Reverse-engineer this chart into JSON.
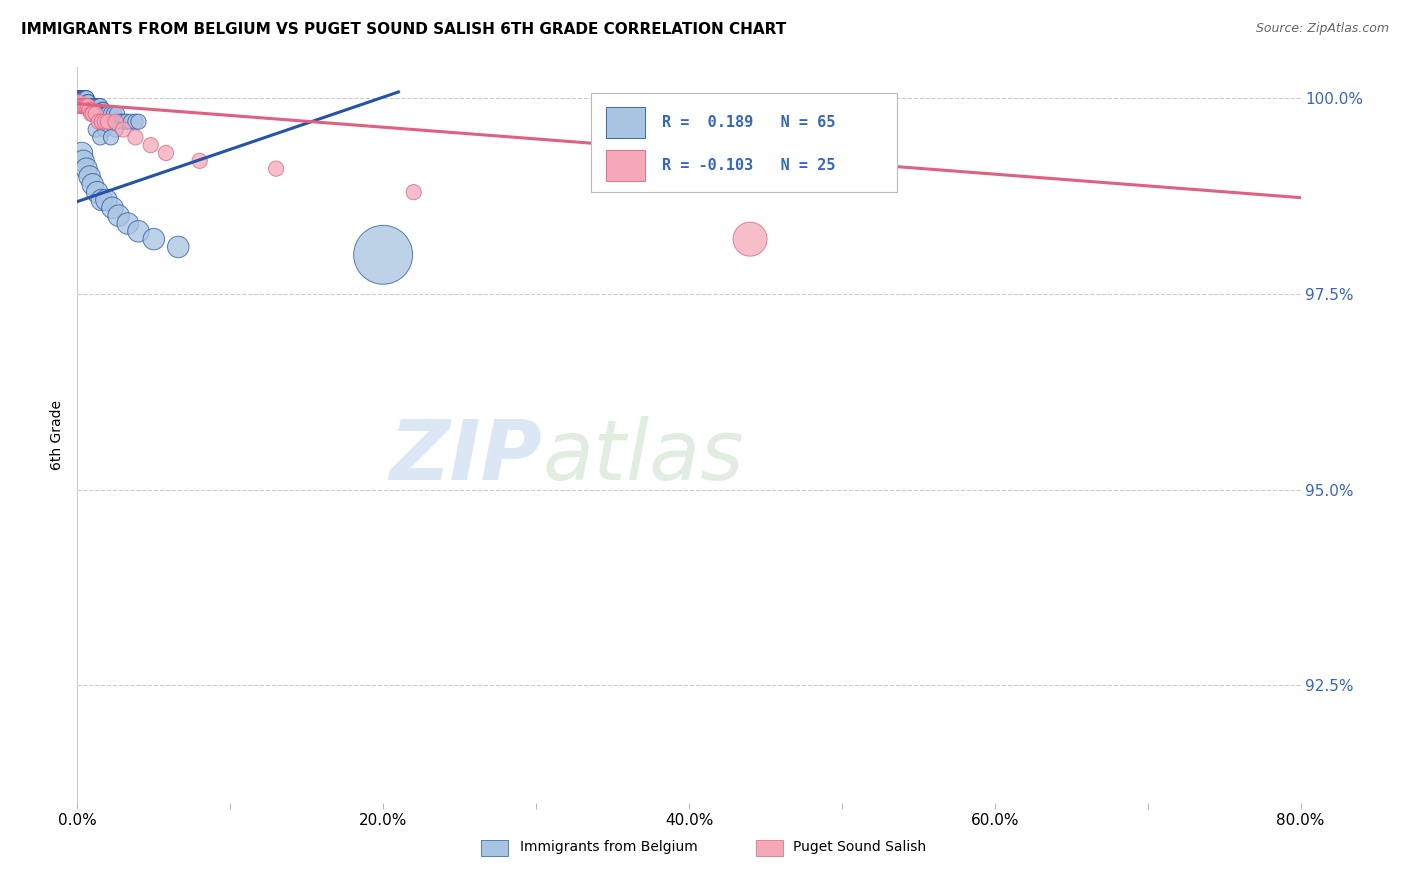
{
  "title": "IMMIGRANTS FROM BELGIUM VS PUGET SOUND SALISH 6TH GRADE CORRELATION CHART",
  "source": "Source: ZipAtlas.com",
  "ylabel": "6th Grade",
  "xlim": [
    0.0,
    0.8
  ],
  "ylim": [
    0.91,
    1.004
  ],
  "yticks": [
    0.925,
    0.95,
    0.975,
    1.0
  ],
  "ytick_labels": [
    "92.5%",
    "95.0%",
    "97.5%",
    "100.0%"
  ],
  "xtick_labels": [
    "0.0%",
    "",
    "20.0%",
    "",
    "40.0%",
    "",
    "60.0%",
    "",
    "80.0%"
  ],
  "xticks": [
    0.0,
    0.1,
    0.2,
    0.3,
    0.4,
    0.5,
    0.6,
    0.7,
    0.8
  ],
  "blue_R": 0.189,
  "blue_N": 65,
  "pink_R": -0.103,
  "pink_N": 25,
  "blue_color": "#a8c4e0",
  "pink_color": "#f4a8b8",
  "blue_line_color": "#2255aa",
  "pink_line_color": "#e06080",
  "legend_color": "#3366cc",
  "watermark_zip": "ZIP",
  "watermark_atlas": "atlas",
  "blue_scatter_x": [
    0.001,
    0.001,
    0.002,
    0.002,
    0.002,
    0.003,
    0.003,
    0.003,
    0.004,
    0.004,
    0.004,
    0.005,
    0.005,
    0.005,
    0.006,
    0.006,
    0.007,
    0.007,
    0.007,
    0.008,
    0.008,
    0.009,
    0.009,
    0.01,
    0.01,
    0.011,
    0.012,
    0.012,
    0.013,
    0.014,
    0.015,
    0.016,
    0.017,
    0.018,
    0.019,
    0.02,
    0.022,
    0.024,
    0.026,
    0.028,
    0.03,
    0.032,
    0.035,
    0.038,
    0.04,
    0.012,
    0.018,
    0.025,
    0.015,
    0.022,
    0.003,
    0.004,
    0.006,
    0.008,
    0.01,
    0.013,
    0.016,
    0.019,
    0.023,
    0.027,
    0.033,
    0.04,
    0.05,
    0.066,
    0.2
  ],
  "blue_scatter_y": [
    1.0,
    1.0,
    1.0,
    1.0,
    1.0,
    1.0,
    1.0,
    1.0,
    1.0,
    1.0,
    1.0,
    1.0,
    1.0,
    1.0,
    1.0,
    1.0,
    0.9995,
    0.9995,
    0.999,
    0.999,
    0.999,
    0.999,
    0.999,
    0.999,
    0.999,
    0.999,
    0.999,
    0.999,
    0.999,
    0.999,
    0.999,
    0.9985,
    0.9985,
    0.998,
    0.998,
    0.998,
    0.998,
    0.998,
    0.998,
    0.997,
    0.997,
    0.997,
    0.997,
    0.997,
    0.997,
    0.996,
    0.996,
    0.996,
    0.995,
    0.995,
    0.993,
    0.992,
    0.991,
    0.99,
    0.989,
    0.988,
    0.987,
    0.987,
    0.986,
    0.985,
    0.984,
    0.983,
    0.982,
    0.981,
    0.98
  ],
  "blue_scatter_size": [
    20,
    20,
    20,
    20,
    20,
    20,
    20,
    20,
    20,
    20,
    20,
    20,
    20,
    20,
    20,
    20,
    20,
    20,
    20,
    20,
    20,
    20,
    20,
    20,
    20,
    20,
    20,
    20,
    20,
    20,
    20,
    20,
    20,
    20,
    20,
    20,
    20,
    20,
    20,
    20,
    20,
    20,
    20,
    20,
    20,
    20,
    20,
    20,
    20,
    20,
    40,
    40,
    40,
    40,
    40,
    40,
    40,
    40,
    40,
    40,
    40,
    40,
    40,
    40,
    300
  ],
  "pink_scatter_x": [
    0.001,
    0.002,
    0.002,
    0.003,
    0.004,
    0.005,
    0.006,
    0.007,
    0.008,
    0.009,
    0.01,
    0.012,
    0.014,
    0.016,
    0.018,
    0.02,
    0.025,
    0.03,
    0.038,
    0.048,
    0.058,
    0.08,
    0.13,
    0.22,
    0.44
  ],
  "pink_scatter_y": [
    0.9995,
    0.999,
    0.999,
    0.999,
    0.999,
    0.999,
    0.999,
    0.999,
    0.9985,
    0.998,
    0.998,
    0.998,
    0.997,
    0.997,
    0.997,
    0.997,
    0.997,
    0.996,
    0.995,
    0.994,
    0.993,
    0.992,
    0.991,
    0.988,
    0.982
  ],
  "pink_scatter_size": [
    20,
    20,
    20,
    20,
    20,
    20,
    20,
    20,
    20,
    20,
    20,
    20,
    20,
    20,
    20,
    20,
    20,
    20,
    20,
    20,
    20,
    20,
    20,
    20,
    100
  ],
  "blue_trend_x": [
    0.0,
    0.21
  ],
  "blue_trend_y": [
    0.9868,
    1.0008
  ],
  "pink_trend_x": [
    0.0,
    0.8
  ],
  "pink_trend_y": [
    0.9993,
    0.9873
  ]
}
